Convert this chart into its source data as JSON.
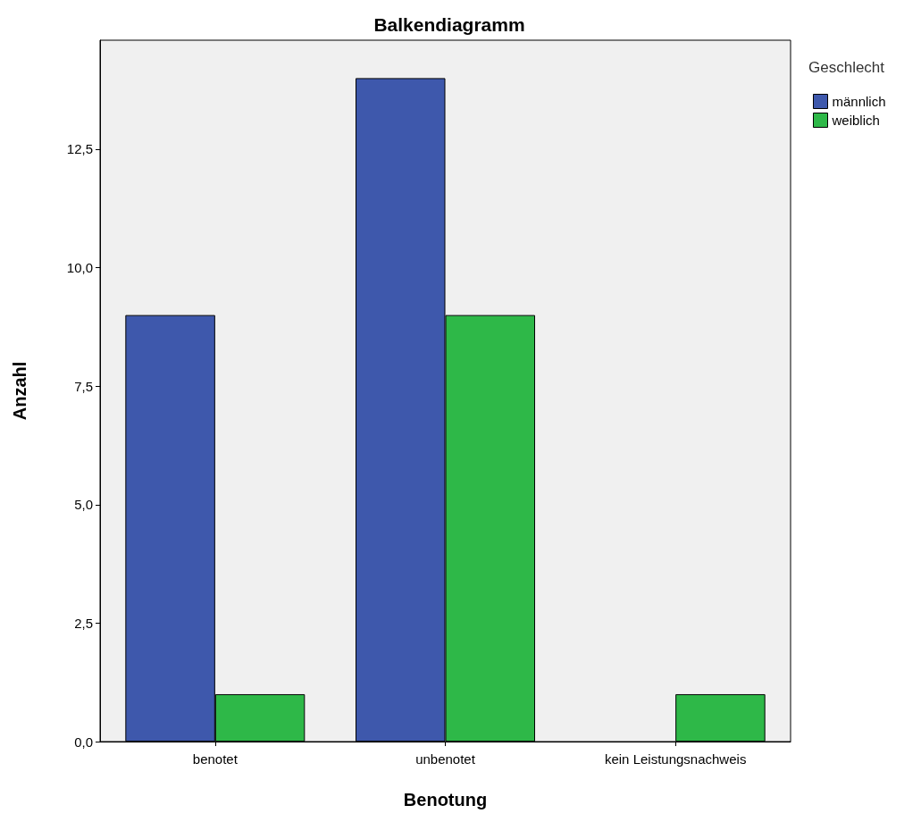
{
  "chart_data": {
    "type": "bar",
    "title": "Balkendiagramm",
    "xlabel": "Benotung",
    "ylabel": "Anzahl",
    "legend_title": "Geschlecht",
    "categories": [
      "benotet",
      "unbenotet",
      "kein Leistungsnachweis"
    ],
    "series": [
      {
        "name": "männlich",
        "color": "#3e58ac",
        "values": [
          9,
          14,
          null
        ]
      },
      {
        "name": "weiblich",
        "color": "#2eb848",
        "values": [
          1,
          9,
          1
        ]
      }
    ],
    "ylim": [
      0,
      14.8
    ],
    "yticks": [
      {
        "value": 0,
        "label": "0,0"
      },
      {
        "value": 2.5,
        "label": "2,5"
      },
      {
        "value": 5,
        "label": "5,0"
      },
      {
        "value": 7.5,
        "label": "7,5"
      },
      {
        "value": 10,
        "label": "10,0"
      },
      {
        "value": 12.5,
        "label": "12,5"
      }
    ],
    "grid": false,
    "legend": "top right"
  }
}
